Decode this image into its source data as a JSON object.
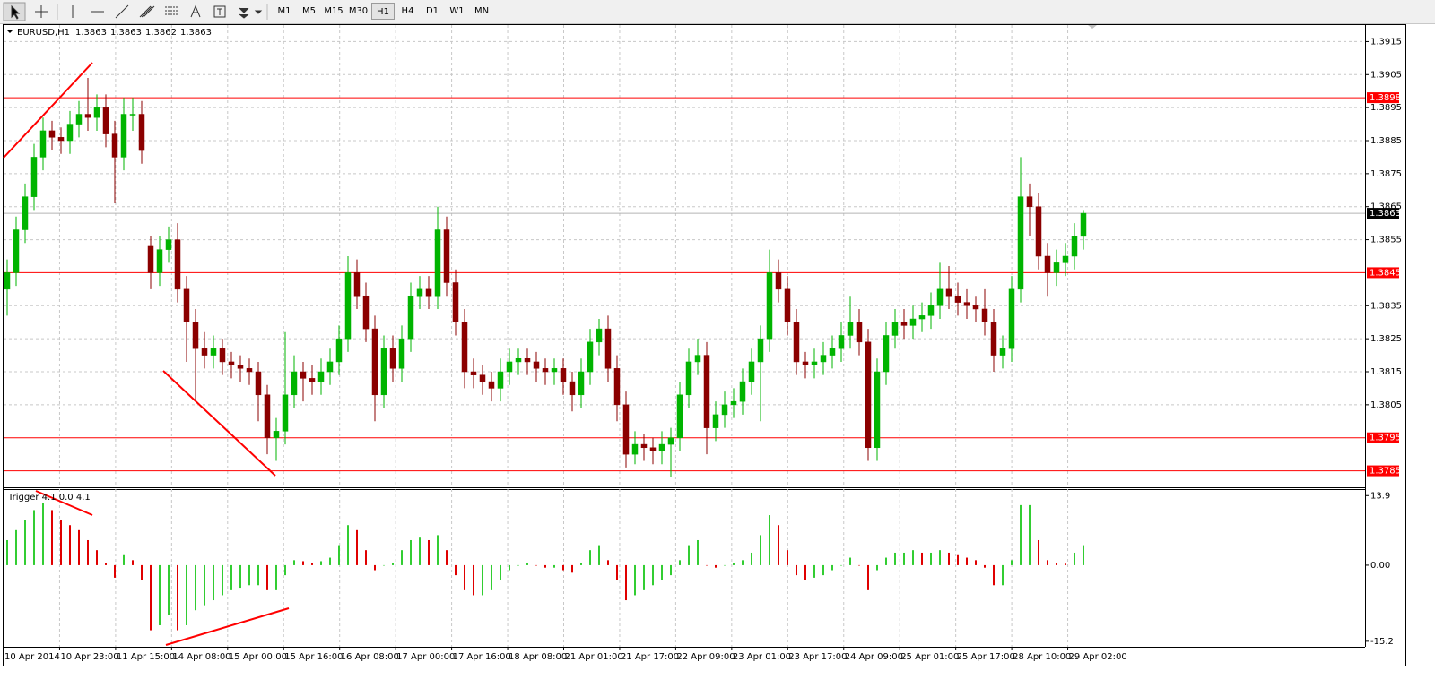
{
  "toolbar": {
    "timeframes": [
      "M1",
      "M5",
      "M15",
      "M30",
      "H1",
      "H4",
      "D1",
      "W1",
      "MN"
    ],
    "active": "H1"
  },
  "chart_data": [
    {
      "type": "candlestick",
      "title": "EURUSD,H1",
      "header_values": [
        1.3863,
        1.3863,
        1.3862,
        1.3863
      ],
      "up_color": "#00b400",
      "down_color": "#8b0000",
      "grid": true,
      "ylim": [
        1.378,
        1.392
      ],
      "yticks": [
        1.3915,
        1.3905,
        1.3895,
        1.3885,
        1.3875,
        1.3865,
        1.3855,
        1.3835,
        1.3825,
        1.3815,
        1.3805
      ],
      "levels": [
        1.3898,
        1.3845,
        1.3795,
        1.3785
      ],
      "level_color": "#ff0000",
      "last_price": 1.3863,
      "x_labels": [
        "10 Apr 2014",
        "10 Apr 23:00",
        "11 Apr 15:00",
        "14 Apr 08:00",
        "15 Apr 00:00",
        "15 Apr 16:00",
        "16 Apr 08:00",
        "17 Apr 00:00",
        "17 Apr 16:00",
        "18 Apr 08:00",
        "21 Apr 01:00",
        "21 Apr 17:00",
        "22 Apr 09:00",
        "23 Apr 01:00",
        "23 Apr 17:00",
        "24 Apr 09:00",
        "25 Apr 01:00",
        "25 Apr 17:00",
        "28 Apr 10:00",
        "29 Apr 02:00"
      ],
      "candles": [
        [
          1.384,
          1.3849,
          1.3832,
          1.3845
        ],
        [
          1.3845,
          1.3862,
          1.3841,
          1.3858
        ],
        [
          1.3858,
          1.3872,
          1.3854,
          1.3868
        ],
        [
          1.3868,
          1.3884,
          1.3864,
          1.388
        ],
        [
          1.388,
          1.3892,
          1.3876,
          1.3888
        ],
        [
          1.3888,
          1.3891,
          1.3882,
          1.3886
        ],
        [
          1.3886,
          1.3889,
          1.3881,
          1.3885
        ],
        [
          1.3885,
          1.3894,
          1.3881,
          1.389
        ],
        [
          1.389,
          1.3897,
          1.3886,
          1.3893
        ],
        [
          1.3893,
          1.3904,
          1.3888,
          1.3892
        ],
        [
          1.3892,
          1.3899,
          1.3888,
          1.3895
        ],
        [
          1.3895,
          1.3899,
          1.3883,
          1.3887
        ],
        [
          1.3887,
          1.3891,
          1.3866,
          1.388
        ],
        [
          1.388,
          1.3898,
          1.3876,
          1.3893
        ],
        [
          1.3893,
          1.3898,
          1.3888,
          1.3893
        ],
        [
          1.3893,
          1.3897,
          1.3878,
          1.3882
        ],
        [
          1.3853,
          1.3856,
          1.384,
          1.3845
        ],
        [
          1.3845,
          1.3856,
          1.3841,
          1.3852
        ],
        [
          1.3852,
          1.3859,
          1.3848,
          1.3855
        ],
        [
          1.3855,
          1.386,
          1.3836,
          1.384
        ],
        [
          1.384,
          1.3844,
          1.3818,
          1.383
        ],
        [
          1.383,
          1.3834,
          1.3806,
          1.3822
        ],
        [
          1.3822,
          1.3827,
          1.3816,
          1.382
        ],
        [
          1.382,
          1.3826,
          1.3816,
          1.3822
        ],
        [
          1.3822,
          1.3825,
          1.3814,
          1.3818
        ],
        [
          1.3818,
          1.3821,
          1.3813,
          1.3817
        ],
        [
          1.3817,
          1.382,
          1.3812,
          1.3816
        ],
        [
          1.3816,
          1.3819,
          1.3811,
          1.3815
        ],
        [
          1.3815,
          1.3818,
          1.38,
          1.3808
        ],
        [
          1.3808,
          1.3811,
          1.379,
          1.3795
        ],
        [
          1.3795,
          1.3801,
          1.3788,
          1.3797
        ],
        [
          1.3797,
          1.3827,
          1.3793,
          1.3808
        ],
        [
          1.3808,
          1.382,
          1.3804,
          1.3815
        ],
        [
          1.3815,
          1.3818,
          1.3806,
          1.3813
        ],
        [
          1.3813,
          1.3817,
          1.3808,
          1.3812
        ],
        [
          1.3812,
          1.3819,
          1.3808,
          1.3815
        ],
        [
          1.3815,
          1.3822,
          1.3811,
          1.3818
        ],
        [
          1.3818,
          1.3829,
          1.3814,
          1.3825
        ],
        [
          1.3825,
          1.385,
          1.3821,
          1.3845
        ],
        [
          1.3845,
          1.3849,
          1.3834,
          1.3838
        ],
        [
          1.3838,
          1.3842,
          1.3824,
          1.3828
        ],
        [
          1.3828,
          1.3832,
          1.38,
          1.3808
        ],
        [
          1.3808,
          1.3826,
          1.3804,
          1.3822
        ],
        [
          1.3822,
          1.3826,
          1.3812,
          1.3816
        ],
        [
          1.3816,
          1.3829,
          1.3812,
          1.3825
        ],
        [
          1.3825,
          1.3842,
          1.3821,
          1.3838
        ],
        [
          1.3838,
          1.3844,
          1.3834,
          1.384
        ],
        [
          1.384,
          1.3844,
          1.3834,
          1.3838
        ],
        [
          1.3838,
          1.3865,
          1.3834,
          1.3858
        ],
        [
          1.3858,
          1.3862,
          1.3838,
          1.3842
        ],
        [
          1.3842,
          1.3846,
          1.3826,
          1.383
        ],
        [
          1.383,
          1.3834,
          1.381,
          1.3815
        ],
        [
          1.3815,
          1.3819,
          1.381,
          1.3814
        ],
        [
          1.3814,
          1.3817,
          1.3808,
          1.3812
        ],
        [
          1.3812,
          1.3815,
          1.3806,
          1.381
        ],
        [
          1.381,
          1.3819,
          1.3806,
          1.3815
        ],
        [
          1.3815,
          1.3822,
          1.3811,
          1.3818
        ],
        [
          1.3818,
          1.3822,
          1.3814,
          1.3819
        ],
        [
          1.3819,
          1.3822,
          1.3814,
          1.3818
        ],
        [
          1.3818,
          1.3821,
          1.3812,
          1.3816
        ],
        [
          1.3816,
          1.3819,
          1.3811,
          1.3815
        ],
        [
          1.3815,
          1.3819,
          1.3811,
          1.3816
        ],
        [
          1.3816,
          1.3819,
          1.3808,
          1.3812
        ],
        [
          1.3812,
          1.3815,
          1.3803,
          1.3808
        ],
        [
          1.3808,
          1.3819,
          1.3804,
          1.3815
        ],
        [
          1.3815,
          1.3828,
          1.3811,
          1.3824
        ],
        [
          1.3824,
          1.3831,
          1.382,
          1.3828
        ],
        [
          1.3828,
          1.3832,
          1.3812,
          1.3816
        ],
        [
          1.3816,
          1.382,
          1.38,
          1.3805
        ],
        [
          1.3805,
          1.3809,
          1.3786,
          1.379
        ],
        [
          1.379,
          1.3797,
          1.3787,
          1.3793
        ],
        [
          1.3793,
          1.3796,
          1.3788,
          1.3792
        ],
        [
          1.3792,
          1.3795,
          1.3787,
          1.3791
        ],
        [
          1.3791,
          1.3797,
          1.3787,
          1.3793
        ],
        [
          1.3793,
          1.3798,
          1.3783,
          1.3795
        ],
        [
          1.3795,
          1.3812,
          1.3791,
          1.3808
        ],
        [
          1.3808,
          1.3822,
          1.3804,
          1.3818
        ],
        [
          1.3818,
          1.3825,
          1.3814,
          1.382
        ],
        [
          1.382,
          1.3824,
          1.379,
          1.3798
        ],
        [
          1.3798,
          1.3806,
          1.3794,
          1.3802
        ],
        [
          1.3802,
          1.3809,
          1.3798,
          1.3805
        ],
        [
          1.3805,
          1.381,
          1.3801,
          1.3806
        ],
        [
          1.3806,
          1.3816,
          1.3802,
          1.3812
        ],
        [
          1.3812,
          1.3822,
          1.3808,
          1.3818
        ],
        [
          1.3818,
          1.3829,
          1.38,
          1.3825
        ],
        [
          1.3825,
          1.3852,
          1.3821,
          1.3845
        ],
        [
          1.3845,
          1.3849,
          1.3836,
          1.384
        ],
        [
          1.384,
          1.3844,
          1.3826,
          1.383
        ],
        [
          1.383,
          1.3834,
          1.3814,
          1.3818
        ],
        [
          1.3818,
          1.3821,
          1.3813,
          1.3817
        ],
        [
          1.3817,
          1.3822,
          1.3813,
          1.3818
        ],
        [
          1.3818,
          1.3824,
          1.3814,
          1.382
        ],
        [
          1.382,
          1.3826,
          1.3816,
          1.3822
        ],
        [
          1.3822,
          1.383,
          1.3818,
          1.3826
        ],
        [
          1.3826,
          1.3838,
          1.3822,
          1.383
        ],
        [
          1.383,
          1.3834,
          1.382,
          1.3824
        ],
        [
          1.3824,
          1.3828,
          1.3788,
          1.3792
        ],
        [
          1.3792,
          1.3819,
          1.3788,
          1.3815
        ],
        [
          1.3815,
          1.383,
          1.3811,
          1.3826
        ],
        [
          1.3826,
          1.3834,
          1.3822,
          1.383
        ],
        [
          1.383,
          1.3834,
          1.3825,
          1.3829
        ],
        [
          1.3829,
          1.3835,
          1.3825,
          1.3831
        ],
        [
          1.3831,
          1.3836,
          1.3827,
          1.3832
        ],
        [
          1.3832,
          1.3839,
          1.3828,
          1.3835
        ],
        [
          1.3835,
          1.3848,
          1.3831,
          1.384
        ],
        [
          1.384,
          1.3847,
          1.3834,
          1.3838
        ],
        [
          1.3838,
          1.3842,
          1.3832,
          1.3836
        ],
        [
          1.3836,
          1.384,
          1.3831,
          1.3835
        ],
        [
          1.3835,
          1.3838,
          1.383,
          1.3834
        ],
        [
          1.3834,
          1.384,
          1.3826,
          1.383
        ],
        [
          1.383,
          1.3834,
          1.3815,
          1.382
        ],
        [
          1.382,
          1.3826,
          1.3816,
          1.3822
        ],
        [
          1.3822,
          1.3844,
          1.3818,
          1.384
        ],
        [
          1.384,
          1.388,
          1.3836,
          1.3868
        ],
        [
          1.3868,
          1.3872,
          1.3856,
          1.3865
        ],
        [
          1.3865,
          1.3869,
          1.3846,
          1.385
        ],
        [
          1.385,
          1.3854,
          1.3838,
          1.3845
        ],
        [
          1.3845,
          1.3852,
          1.3841,
          1.3848
        ],
        [
          1.3848,
          1.3854,
          1.3844,
          1.385
        ],
        [
          1.385,
          1.386,
          1.3846,
          1.3856
        ],
        [
          1.3856,
          1.3864,
          1.3852,
          1.3863
        ]
      ]
    },
    {
      "type": "histogram",
      "title": "Trigger 4.1 0.0 4.1",
      "up_color": "#32cd32",
      "down_color": "#e00000",
      "ylim": [
        -16.3,
        15.2
      ],
      "yticks": [
        13.9,
        {
          "value": 0,
          "label": "0.00"
        },
        -15.2
      ],
      "values": [
        5,
        7,
        9,
        11,
        12.5,
        11,
        9,
        8,
        7,
        5,
        3,
        0.5,
        -2.5,
        2,
        1,
        -3,
        -13,
        -12,
        -10,
        -13,
        -12,
        -9,
        -8,
        -7,
        -6,
        -5,
        -4.5,
        -4,
        -4,
        -5,
        -5,
        -2,
        1,
        0.8,
        0.5,
        0.8,
        1.5,
        4,
        8,
        7,
        3,
        -1,
        0,
        0.5,
        3,
        5,
        5.5,
        5,
        6,
        3,
        -2,
        -5,
        -6,
        -6,
        -5,
        -3,
        -1,
        0,
        0.5,
        0,
        -0.5,
        -0.5,
        -1,
        -1.5,
        0.5,
        3,
        4,
        1,
        -3,
        -7,
        -6,
        -5,
        -4,
        -3,
        -2,
        1,
        4,
        5,
        0,
        -0.5,
        0,
        0.5,
        1,
        2.5,
        6,
        10,
        8,
        3,
        -2,
        -3,
        -2.5,
        -2,
        -1,
        0,
        1.5,
        0,
        -5,
        -1,
        1.5,
        2.5,
        2.5,
        3,
        2.5,
        2.5,
        3,
        2.5,
        2,
        1.5,
        1,
        -0.5,
        -4,
        -4,
        1,
        12,
        12,
        5,
        1,
        0.5,
        0.3,
        2.5,
        4
      ]
    }
  ]
}
